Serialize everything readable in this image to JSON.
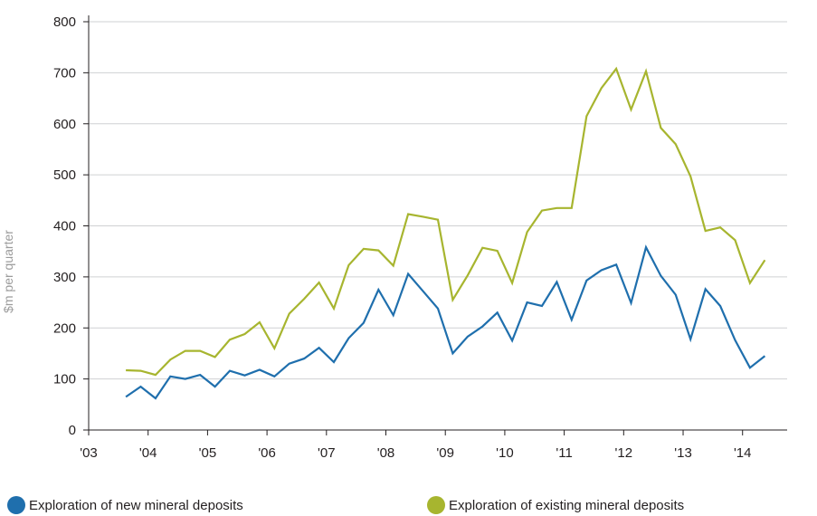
{
  "chart_data": {
    "type": "line",
    "title": "",
    "xlabel": "",
    "ylabel": "$m per quarter",
    "ylim": [
      0,
      800
    ],
    "yticks": [
      0,
      100,
      200,
      300,
      400,
      500,
      600,
      700,
      800
    ],
    "xtick_labels": [
      "'03",
      "'04",
      "'05",
      "'06",
      "'07",
      "'08",
      "'09",
      "'10",
      "'11",
      "'12",
      "'13",
      "'14"
    ],
    "x_start_year": 2003,
    "x_end_year": 2014.75,
    "legend_position": "bottom",
    "series": [
      {
        "name": "Exploration of new mineral deposits",
        "color": "#1f6fad",
        "x": [
          2003.625,
          2003.875,
          2004.125,
          2004.375,
          2004.625,
          2004.875,
          2005.125,
          2005.375,
          2005.625,
          2005.875,
          2006.125,
          2006.375,
          2006.625,
          2006.875,
          2007.125,
          2007.375,
          2007.625,
          2007.875,
          2008.125,
          2008.375,
          2008.625,
          2008.875,
          2009.125,
          2009.375,
          2009.625,
          2009.875,
          2010.125,
          2010.375,
          2010.625,
          2010.875,
          2011.125,
          2011.375,
          2011.625,
          2011.875,
          2012.125,
          2012.375,
          2012.625,
          2012.875,
          2013.125,
          2013.375,
          2013.625,
          2013.875,
          2014.125,
          2014.375
        ],
        "values": [
          65,
          85,
          62,
          105,
          100,
          108,
          85,
          116,
          107,
          118,
          105,
          130,
          140,
          161,
          133,
          180,
          210,
          275,
          225,
          306,
          272,
          238,
          150,
          183,
          203,
          230,
          175,
          250,
          243,
          290,
          216,
          293,
          313,
          324,
          249,
          358,
          302,
          265,
          178,
          276,
          243,
          176,
          122,
          145
        ]
      },
      {
        "name": "Exploration of existing mineral deposits",
        "color": "#a7b52f",
        "x": [
          2003.625,
          2003.875,
          2004.125,
          2004.375,
          2004.625,
          2004.875,
          2005.125,
          2005.375,
          2005.625,
          2005.875,
          2006.125,
          2006.375,
          2006.625,
          2006.875,
          2007.125,
          2007.375,
          2007.625,
          2007.875,
          2008.125,
          2008.375,
          2008.625,
          2008.875,
          2009.125,
          2009.375,
          2009.625,
          2009.875,
          2010.125,
          2010.375,
          2010.625,
          2010.875,
          2011.125,
          2011.375,
          2011.625,
          2011.875,
          2012.125,
          2012.375,
          2012.625,
          2012.875,
          2013.125,
          2013.375,
          2013.625,
          2013.875,
          2014.125,
          2014.375
        ],
        "values": [
          117,
          116,
          108,
          138,
          155,
          155,
          143,
          177,
          188,
          211,
          160,
          228,
          257,
          289,
          238,
          323,
          355,
          352,
          322,
          423,
          418,
          412,
          255,
          303,
          357,
          351,
          288,
          388,
          430,
          435,
          435,
          615,
          670,
          708,
          628,
          703,
          592,
          560,
          497,
          390,
          397,
          372,
          288,
          333
        ]
      }
    ]
  }
}
